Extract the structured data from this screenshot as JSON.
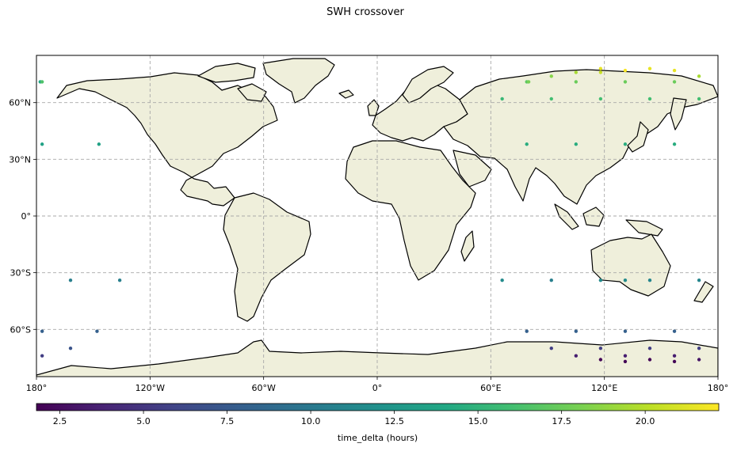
{
  "title": "SWH crossover",
  "map": {
    "projection": "PlateCarree",
    "extent": {
      "lon": [
        -180,
        180
      ],
      "lat": [
        -85,
        85
      ]
    },
    "gridlines": {
      "lon": [
        -120,
        -60,
        0,
        60,
        120
      ],
      "lat": [
        -60,
        -30,
        0,
        30,
        60
      ]
    },
    "x_ticks": [
      {
        "lon": -180,
        "label": "180°"
      },
      {
        "lon": -120,
        "label": "120°W"
      },
      {
        "lon": -60,
        "label": "60°W"
      },
      {
        "lon": 0,
        "label": "0°"
      },
      {
        "lon": 60,
        "label": "60°E"
      },
      {
        "lon": 120,
        "label": "120°E"
      },
      {
        "lon": 180,
        "label": "180°"
      }
    ],
    "y_ticks": [
      {
        "lat": 60,
        "label": "60°N"
      },
      {
        "lat": 30,
        "label": "30°N"
      },
      {
        "lat": 0,
        "label": "0°"
      },
      {
        "lat": -30,
        "label": "30°S"
      },
      {
        "lat": -60,
        "label": "60°S"
      }
    ],
    "land_color": "#efefdb",
    "coast_color": "#000000",
    "grid_color": "#a8a8a8"
  },
  "chart_data": {
    "type": "scatter",
    "value_name": "time_delta",
    "points": [
      {
        "lon": -178,
        "lat": 71,
        "v": 14.0
      },
      {
        "lon": -177,
        "lat": 71,
        "v": 16.5
      },
      {
        "lon": -177,
        "lat": 38,
        "v": 13.5
      },
      {
        "lon": -162,
        "lat": -34,
        "v": 10.5
      },
      {
        "lon": -147,
        "lat": 38,
        "v": 13.5
      },
      {
        "lon": -136,
        "lat": -34,
        "v": 10.5
      },
      {
        "lon": -177,
        "lat": -61,
        "v": 8.0
      },
      {
        "lon": -148,
        "lat": -61,
        "v": 8.0
      },
      {
        "lon": -162,
        "lat": -70,
        "v": 7.0
      },
      {
        "lon": -177,
        "lat": -74,
        "v": 5.5
      },
      {
        "lon": 66,
        "lat": -34,
        "v": 11.5
      },
      {
        "lon": 92,
        "lat": -34,
        "v": 10.5
      },
      {
        "lon": 118,
        "lat": -34,
        "v": 11.5
      },
      {
        "lon": 131,
        "lat": -34,
        "v": 11.5
      },
      {
        "lon": 144,
        "lat": -34,
        "v": 11.0
      },
      {
        "lon": 170,
        "lat": -34,
        "v": 11.0
      },
      {
        "lon": 79,
        "lat": -61,
        "v": 8.0
      },
      {
        "lon": 105,
        "lat": -61,
        "v": 8.0
      },
      {
        "lon": 131,
        "lat": -61,
        "v": 8.0
      },
      {
        "lon": 157,
        "lat": -61,
        "v": 8.0
      },
      {
        "lon": 92,
        "lat": -70,
        "v": 5.5
      },
      {
        "lon": 118,
        "lat": -70,
        "v": 5.5
      },
      {
        "lon": 144,
        "lat": -70,
        "v": 5.5
      },
      {
        "lon": 170,
        "lat": -70,
        "v": 5.5
      },
      {
        "lon": 105,
        "lat": -74,
        "v": 3.5
      },
      {
        "lon": 131,
        "lat": -74,
        "v": 3.5
      },
      {
        "lon": 157,
        "lat": -74,
        "v": 3.5
      },
      {
        "lon": 118,
        "lat": -76,
        "v": 2.0
      },
      {
        "lon": 131,
        "lat": -77,
        "v": 2.0
      },
      {
        "lon": 144,
        "lat": -76,
        "v": 2.0
      },
      {
        "lon": 157,
        "lat": -77,
        "v": 2.0
      },
      {
        "lon": 170,
        "lat": -76,
        "v": 3.0
      },
      {
        "lon": 66,
        "lat": 62,
        "v": 15.5
      },
      {
        "lon": 79,
        "lat": 71,
        "v": 17.0
      },
      {
        "lon": 80,
        "lat": 71,
        "v": 18.0
      },
      {
        "lon": 92,
        "lat": 62,
        "v": 16.0
      },
      {
        "lon": 92,
        "lat": 74,
        "v": 18.5
      },
      {
        "lon": 105,
        "lat": 71,
        "v": 17.5
      },
      {
        "lon": 105,
        "lat": 76,
        "v": 19.5
      },
      {
        "lon": 118,
        "lat": 62,
        "v": 16.0
      },
      {
        "lon": 118,
        "lat": 76,
        "v": 20.5
      },
      {
        "lon": 118,
        "lat": 78,
        "v": 21.5
      },
      {
        "lon": 131,
        "lat": 71,
        "v": 17.5
      },
      {
        "lon": 131,
        "lat": 77,
        "v": 22.0
      },
      {
        "lon": 144,
        "lat": 62,
        "v": 16.0
      },
      {
        "lon": 144,
        "lat": 78,
        "v": 21.5
      },
      {
        "lon": 157,
        "lat": 71,
        "v": 17.5
      },
      {
        "lon": 157,
        "lat": 77,
        "v": 21.5
      },
      {
        "lon": 170,
        "lat": 62,
        "v": 16.0
      },
      {
        "lon": 170,
        "lat": 74,
        "v": 19.5
      },
      {
        "lon": 79,
        "lat": 38,
        "v": 14.5
      },
      {
        "lon": 105,
        "lat": 38,
        "v": 14.5
      },
      {
        "lon": 131,
        "lat": 38,
        "v": 14.5
      },
      {
        "lon": 157,
        "lat": 38,
        "v": 14.5
      }
    ],
    "colorbar": {
      "cmap": "viridis",
      "vmin": 1.8,
      "vmax": 22.2,
      "ticks": [
        2.5,
        5.0,
        7.5,
        10.0,
        12.5,
        15.0,
        17.5,
        20.0
      ],
      "tick_labels": [
        "2.5",
        "5.0",
        "7.5",
        "10.0",
        "12.5",
        "15.0",
        "17.5",
        "20.0"
      ],
      "label": "time_delta (hours)"
    }
  }
}
